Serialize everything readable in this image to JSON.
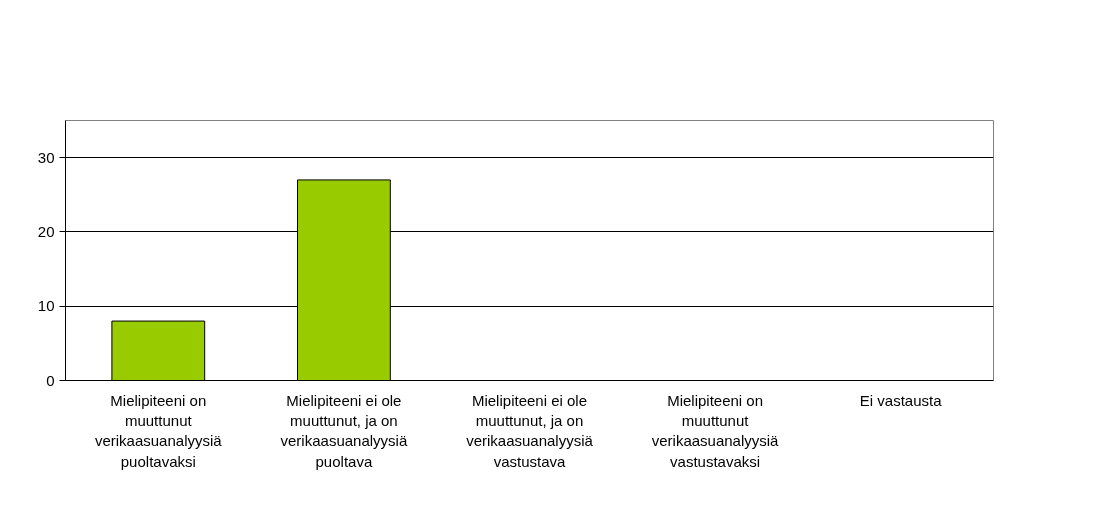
{
  "chart_data": {
    "type": "bar",
    "categories": [
      "Mielipiteeni on muuttunut verikaasuanalyysiä puoltavaksi",
      "Mielipiteeni ei ole muuttunut, ja on verikaasuanalyysiä puoltava",
      "Mielipiteeni ei ole muuttunut, ja on verikaasuanalyysiä vastustava",
      "Mielipiteeni on muuttunut verikaasuanalyysiä vastustavaksi",
      "Ei vastausta"
    ],
    "values": [
      8,
      27,
      0,
      0,
      0
    ],
    "color": "#99cc00",
    "ylim": [
      0,
      35
    ],
    "yticks": [
      0,
      10,
      20,
      30
    ],
    "grid": "y"
  }
}
